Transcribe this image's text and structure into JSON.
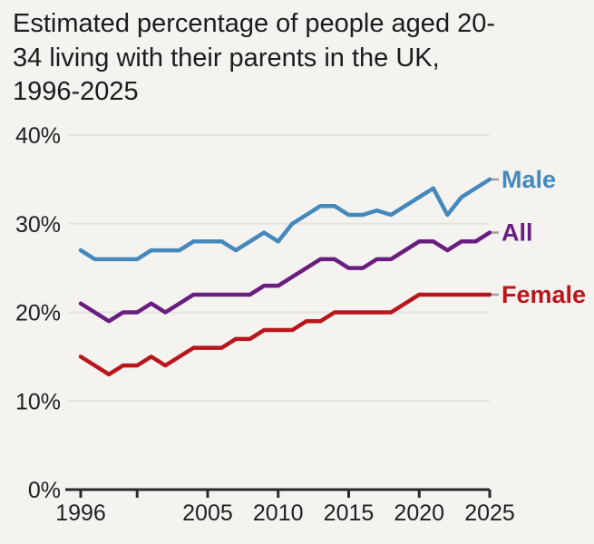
{
  "title": {
    "lines": [
      "Estimated percentage of people aged 20-",
      "34 living with their parents in the UK,",
      "1996-2025"
    ]
  },
  "chart_data": {
    "type": "line",
    "title": "Estimated percentage of people aged 20-34 living with their parents in the UK, 1996-2025",
    "x": [
      1996,
      1997,
      1998,
      1999,
      2000,
      2001,
      2002,
      2003,
      2004,
      2005,
      2006,
      2007,
      2008,
      2009,
      2010,
      2011,
      2012,
      2013,
      2014,
      2015,
      2016,
      2017,
      2018,
      2019,
      2020,
      2021,
      2022,
      2023,
      2024,
      2025
    ],
    "series": [
      {
        "name": "Male",
        "color": "#4589bc",
        "values": [
          27,
          26,
          26,
          26,
          26,
          27,
          27,
          27,
          28,
          28,
          28,
          27,
          28,
          29,
          28,
          30,
          31,
          32,
          32,
          31,
          31,
          31.5,
          31,
          32,
          33,
          34,
          31,
          33,
          34,
          35
        ]
      },
      {
        "name": "All",
        "color": "#691d7e",
        "values": [
          21,
          20,
          19,
          20,
          20,
          21,
          20,
          21,
          22,
          22,
          22,
          22,
          22,
          23,
          23,
          24,
          25,
          26,
          26,
          25,
          25,
          26,
          26,
          27,
          28,
          28,
          27,
          28,
          28,
          29
        ]
      },
      {
        "name": "Female",
        "color": "#b9161c",
        "values": [
          15,
          14,
          13,
          14,
          14,
          15,
          14,
          15,
          16,
          16,
          16,
          17,
          17,
          18,
          18,
          18,
          19,
          19,
          20,
          20,
          20,
          20,
          20,
          21,
          22,
          22,
          22,
          22,
          22,
          22
        ]
      }
    ],
    "xlabel": "",
    "ylabel": "",
    "ylim": [
      0,
      40
    ],
    "yticks": [
      0,
      10,
      20,
      30,
      40
    ],
    "ytick_suffix": "%",
    "xticks": [
      1996,
      2000,
      2005,
      2010,
      2015,
      2020,
      2025
    ],
    "xtick_labels": [
      "1996",
      "",
      "2005",
      "2010",
      "2015",
      "2020",
      "2025"
    ],
    "grid": "horizontal",
    "legend_position": "inline-right-end-labels"
  },
  "colors": {
    "background": "#f4f3f0",
    "grid": "#e4e3e0",
    "axis": "#2a2a2a",
    "tick_text": "#212121",
    "label_dash": "#9f9f9f"
  }
}
